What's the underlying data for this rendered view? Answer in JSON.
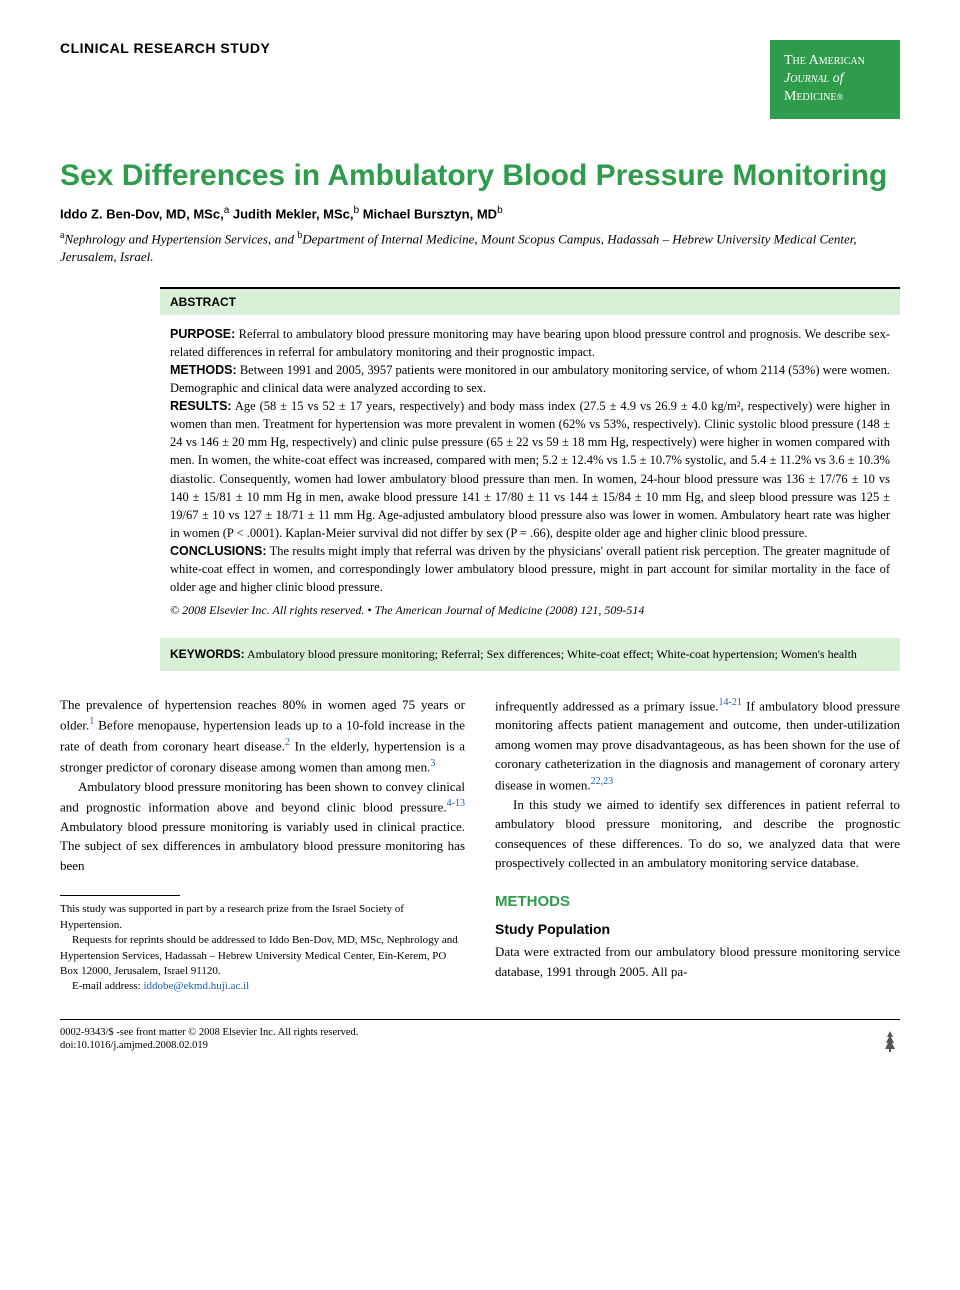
{
  "header": {
    "section_label": "CLINICAL RESEARCH STUDY",
    "journal": {
      "line1": "The American",
      "line2_a": "Journal",
      "line2_b": "of",
      "line3": "Medicine",
      "reg": "®",
      "badge_bg": "#2e9c4a",
      "badge_fg": "#ffffff"
    }
  },
  "title": "Sex Differences in Ambulatory Blood Pressure Monitoring",
  "title_color": "#2e9c4a",
  "authors_html": "Iddo Z. Ben-Dov, MD, MSc,<sup>a</sup> Judith Mekler, MSc,<sup>b</sup> Michael Bursztyn, MD<sup>b</sup>",
  "affiliations_html": "<sup>a</sup>Nephrology and Hypertension Services, and <sup>b</sup>Department of Internal Medicine, Mount Scopus Campus, Hadassah – Hebrew University Medical Center, Jerusalem, Israel.",
  "abstract": {
    "header": "ABSTRACT",
    "purpose_label": "PURPOSE:",
    "purpose": " Referral to ambulatory blood pressure monitoring may have bearing upon blood pressure control and prognosis. We describe sex-related differences in referral for ambulatory monitoring and their prognostic impact.",
    "methods_label": "METHODS:",
    "methods": " Between 1991 and 2005, 3957 patients were monitored in our ambulatory monitoring service, of whom 2114 (53%) were women. Demographic and clinical data were analyzed according to sex.",
    "results_label": "RESULTS:",
    "results": " Age (58 ± 15 vs 52 ± 17 years, respectively) and body mass index (27.5 ± 4.9 vs 26.9 ± 4.0 kg/m², respectively) were higher in women than men. Treatment for hypertension was more prevalent in women (62% vs 53%, respectively). Clinic systolic blood pressure (148 ± 24 vs 146 ± 20 mm Hg, respectively) and clinic pulse pressure (65 ± 22 vs 59 ± 18 mm Hg, respectively) were higher in women compared with men. In women, the white-coat effect was increased, compared with men; 5.2 ± 12.4% vs 1.5 ± 10.7% systolic, and 5.4 ± 11.2% vs 3.6 ± 10.3% diastolic. Consequently, women had lower ambulatory blood pressure than men. In women, 24-hour blood pressure was 136 ± 17/76 ± 10 vs 140 ± 15/81 ± 10 mm Hg in men, awake blood pressure 141 ± 17/80 ± 11 vs 144 ± 15/84 ± 10 mm Hg, and sleep blood pressure was 125 ± 19/67 ± 10 vs 127 ± 18/71 ± 11 mm Hg. Age-adjusted ambulatory blood pressure also was lower in women. Ambulatory heart rate was higher in women (P < .0001). Kaplan-Meier survival did not differ by sex (P = .66), despite older age and higher clinic blood pressure.",
    "conclusions_label": "CONCLUSIONS:",
    "conclusions": " The results might imply that referral was driven by the physicians' overall patient risk perception. The greater magnitude of white-coat effect in women, and correspondingly lower ambulatory blood pressure, might in part account for similar mortality in the face of older age and higher clinic blood pressure.",
    "copyright": "© 2008 Elsevier Inc. All rights reserved. • The American Journal of Medicine (2008) 121, 509-514",
    "box_bg": "#d8f0d8"
  },
  "keywords": {
    "label": "KEYWORDS:",
    "text": " Ambulatory blood pressure monitoring; Referral; Sex differences; White-coat effect; White-coat hypertension; Women's health",
    "box_bg": "#d8f0d8"
  },
  "body": {
    "left": {
      "p1": "The prevalence of hypertension reaches 80% in women aged 75 years or older.",
      "p1_ref": "1",
      "p1b": " Before menopause, hypertension leads up to a 10-fold increase in the rate of death from coronary heart disease.",
      "p1b_ref": "2",
      "p1c": " In the elderly, hypertension is a stronger predictor of coronary disease among women than among men.",
      "p1c_ref": "3",
      "p2": "Ambulatory blood pressure monitoring has been shown to convey clinical and prognostic information above and beyond clinic blood pressure.",
      "p2_ref": "4-13",
      "p2b": " Ambulatory blood pressure monitoring is variably used in clinical practice. The subject of sex differences in ambulatory blood pressure monitoring has been"
    },
    "right": {
      "p1a": "infrequently addressed as a primary issue.",
      "p1a_ref": "14-21",
      "p1b": " If ambulatory blood pressure monitoring affects patient management and outcome, then under-utilization among women may prove disadvantageous, as has been shown for the use of coronary catheterization in the diagnosis and management of coronary artery disease in women.",
      "p1b_ref": "22,23",
      "p2": "In this study we aimed to identify sex differences in patient referral to ambulatory blood pressure monitoring, and describe the prognostic consequences of these differences. To do so, we analyzed data that were prospectively collected in an ambulatory monitoring service database.",
      "methods_heading": "METHODS",
      "sub_heading": "Study Population",
      "sub_text": "Data were extracted from our ambulatory blood pressure monitoring service database, 1991 through 2005. All pa-"
    }
  },
  "footnotes": {
    "f1": "This study was supported in part by a research prize from the Israel Society of Hypertension.",
    "f2": "Requests for reprints should be addressed to Iddo Ben-Dov, MD, MSc, Nephrology and Hypertension Services, Hadassah – Hebrew University Medical Center, Ein-Kerem, PO Box 12000, Jerusalem, Israel 91120.",
    "f3_label": "E-mail address: ",
    "f3_email": "iddobe@ekmd.huji.ac.il"
  },
  "bottom": {
    "line1": "0002-9343/$ -see front matter © 2008 Elsevier Inc. All rights reserved.",
    "line2": "doi:10.1016/j.amjmed.2008.02.019"
  },
  "colors": {
    "link": "#1a5fb4",
    "accent": "#2e9c4a"
  }
}
